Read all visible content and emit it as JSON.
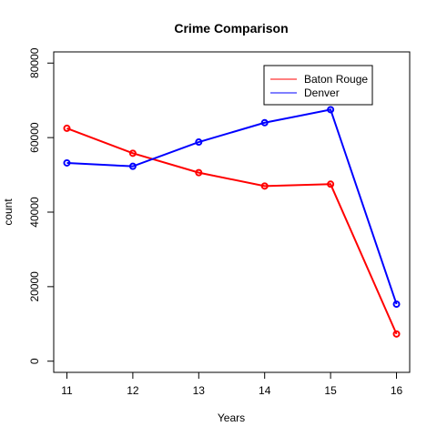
{
  "chart_data": {
    "type": "line",
    "title": "Crime Comparison",
    "xlabel": "Years",
    "ylabel": "count",
    "x": [
      11,
      12,
      13,
      14,
      15,
      16
    ],
    "x_tick_labels": [
      "11",
      "12",
      "13",
      "14",
      "15",
      "16"
    ],
    "xlim": [
      10.8,
      16.2
    ],
    "ylim": [
      -3000,
      83000
    ],
    "y_ticks": [
      0,
      20000,
      40000,
      60000,
      80000
    ],
    "y_tick_labels": [
      "0",
      "20000",
      "40000",
      "60000",
      "80000"
    ],
    "grid": false,
    "legend_position": "top-right",
    "series": [
      {
        "name": "Baton Rouge",
        "color": "#ff0000",
        "values": [
          62500,
          55800,
          50600,
          47000,
          47500,
          7300
        ]
      },
      {
        "name": "Denver",
        "color": "#0000ff",
        "values": [
          53200,
          52300,
          58800,
          64000,
          67500,
          15300
        ]
      }
    ]
  }
}
